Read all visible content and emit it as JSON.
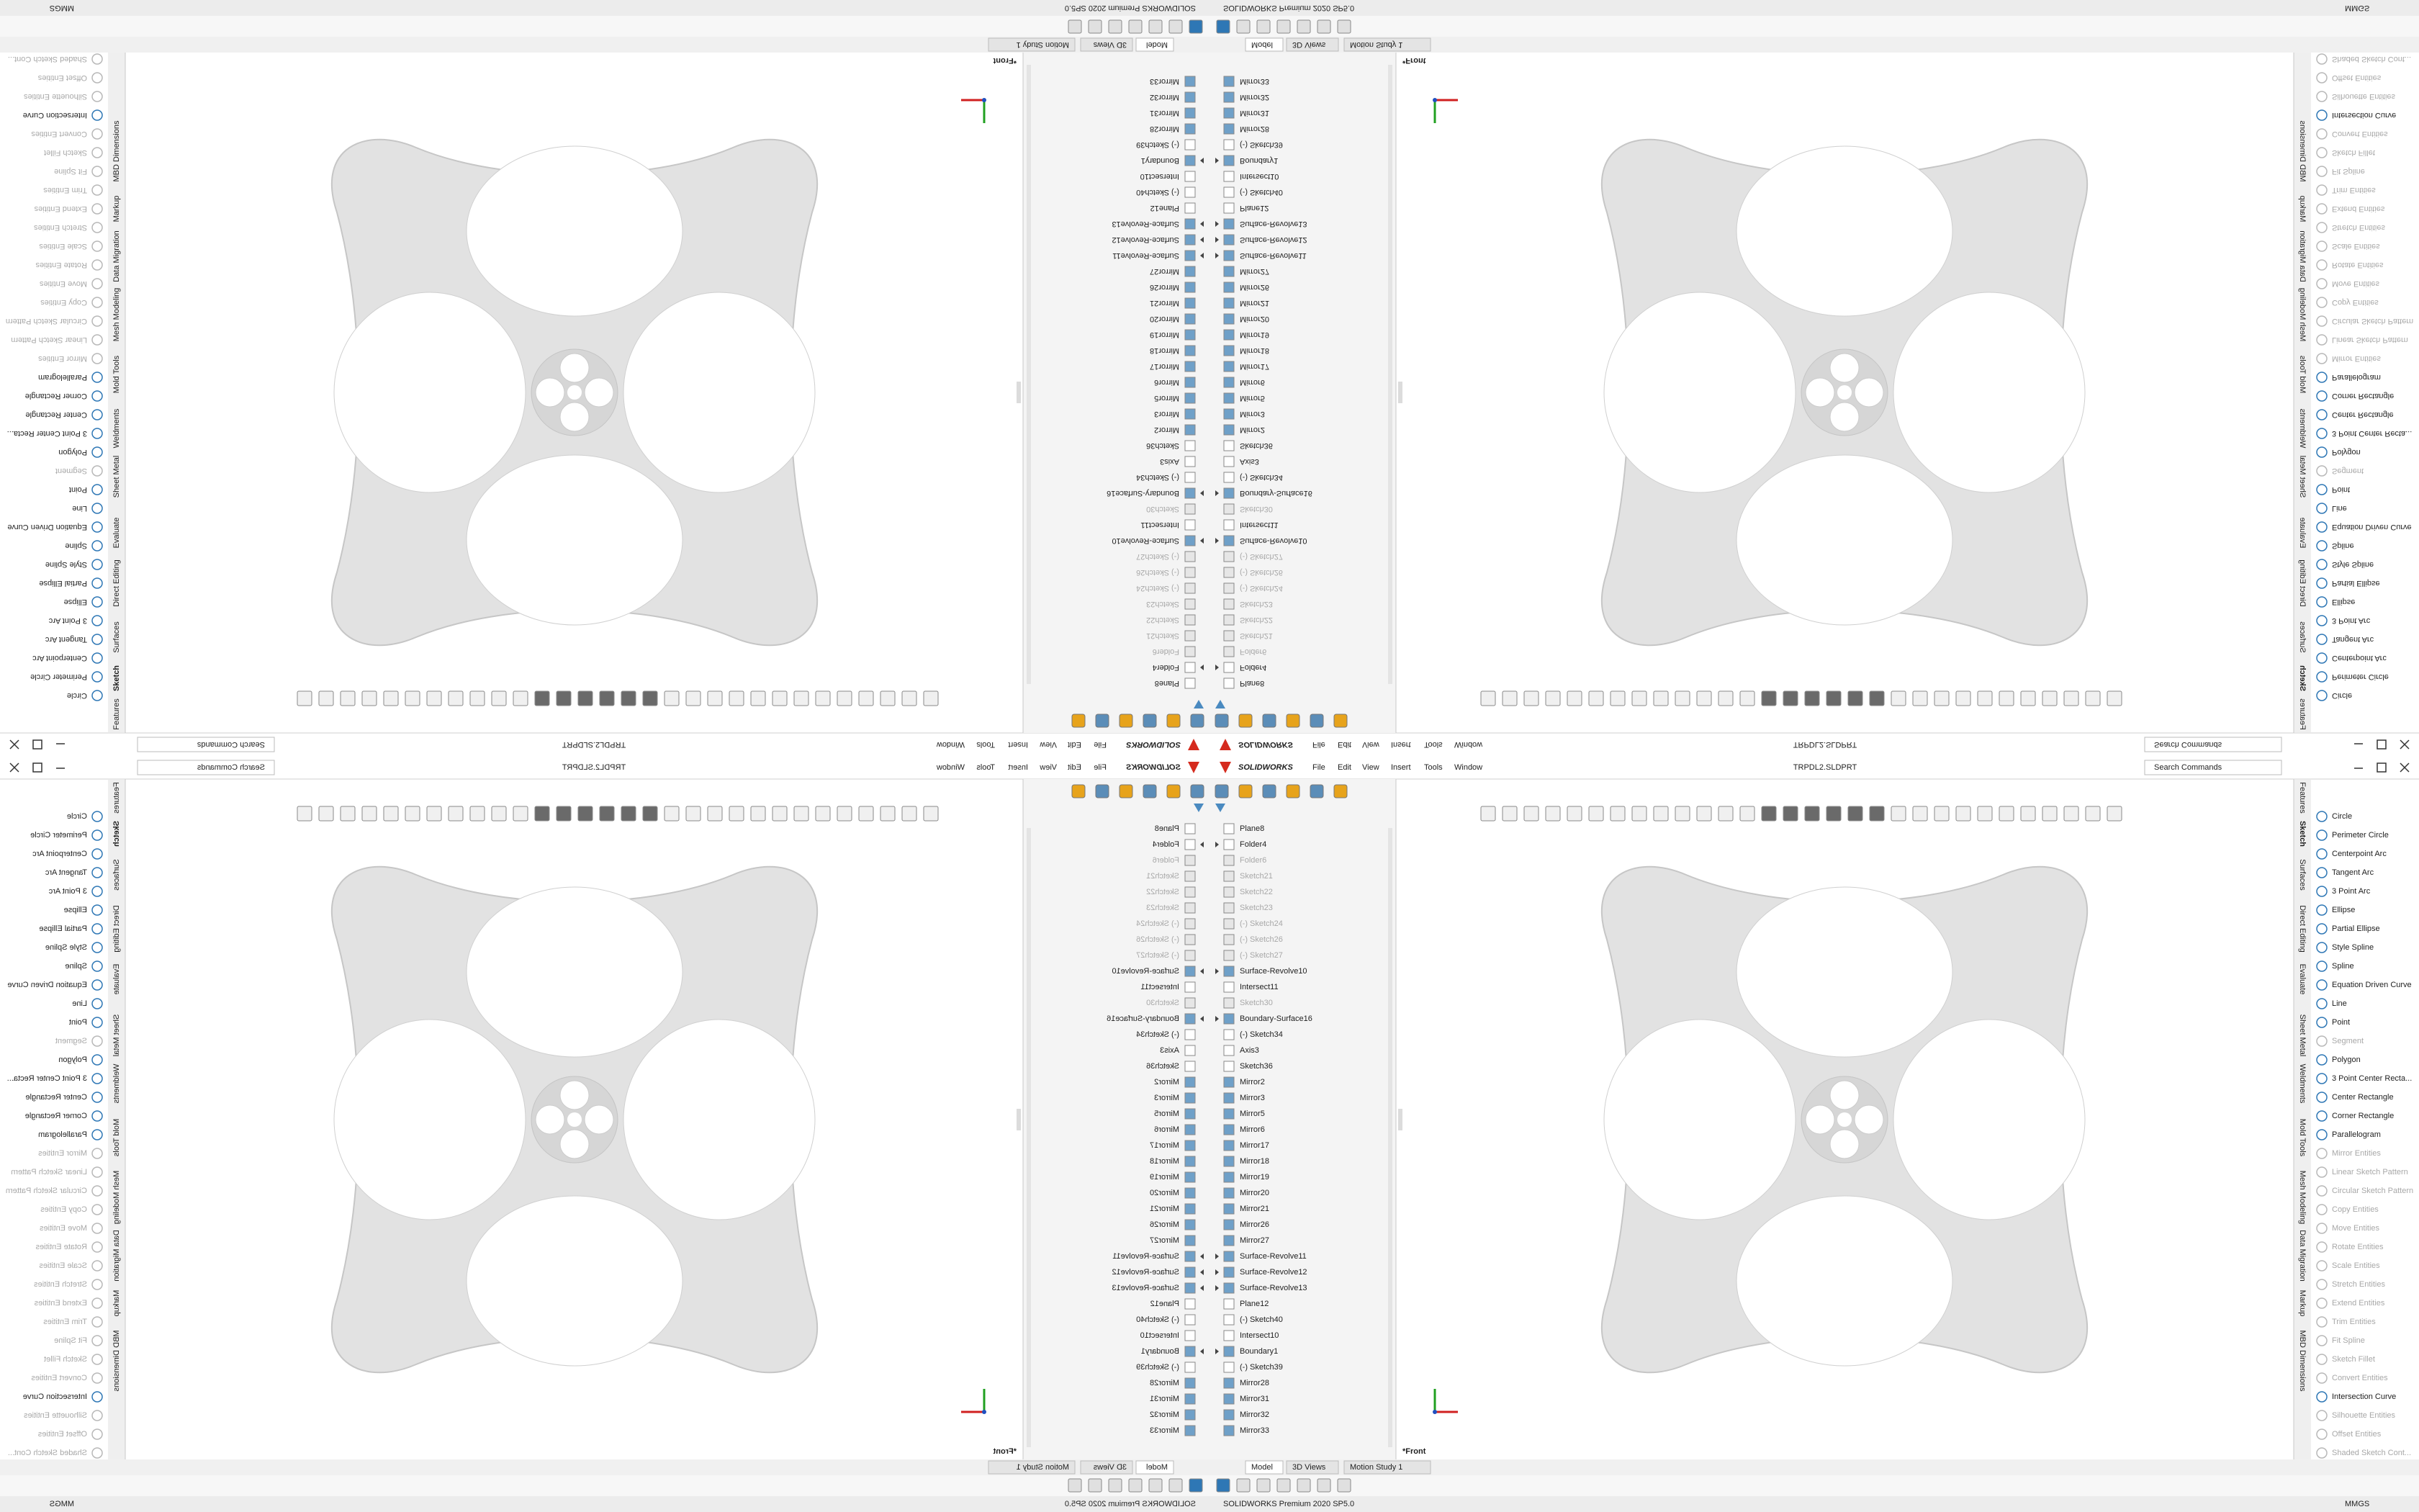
{
  "title_bar": {
    "logo": "SOLIDWORKS",
    "menus": [
      "File",
      "Edit",
      "View",
      "Insert",
      "Tools",
      "Window"
    ],
    "file_name": "TRPDL2.SLDPRT",
    "search_placeholder": "Search Commands"
  },
  "feature_tree": {
    "items": [
      {
        "label": "Plane8"
      },
      {
        "label": "Folder4",
        "expandable": true
      },
      {
        "label": "Folder6",
        "suppressed": true
      },
      {
        "label": "Sketch21",
        "suppressed": true
      },
      {
        "label": "Sketch22",
        "suppressed": true
      },
      {
        "label": "Sketch23",
        "suppressed": true
      },
      {
        "label": "(-) Sketch24",
        "suppressed": true
      },
      {
        "label": "(-) Sketch26",
        "suppressed": true
      },
      {
        "label": "(-) Sketch27",
        "suppressed": true
      },
      {
        "label": "Surface-Revolve10",
        "expandable": true
      },
      {
        "label": "Intersect11"
      },
      {
        "label": "Sketch30",
        "suppressed": true
      },
      {
        "label": "Boundary-Surface16",
        "expandable": true
      },
      {
        "label": "(-) Sketch34"
      },
      {
        "label": "Axis3"
      },
      {
        "label": "Sketch36"
      },
      {
        "label": "Mirror2"
      },
      {
        "label": "Mirror3"
      },
      {
        "label": "Mirror5"
      },
      {
        "label": "Mirror6"
      },
      {
        "label": "Mirror17"
      },
      {
        "label": "Mirror18"
      },
      {
        "label": "Mirror19"
      },
      {
        "label": "Mirror20"
      },
      {
        "label": "Mirror21"
      },
      {
        "label": "Mirror26"
      },
      {
        "label": "Mirror27"
      },
      {
        "label": "Surface-Revolve11",
        "expandable": true
      },
      {
        "label": "Surface-Revolve12",
        "expandable": true
      },
      {
        "label": "Surface-Revolve13",
        "expandable": true
      },
      {
        "label": "Plane12"
      },
      {
        "label": "(-) Sketch40"
      },
      {
        "label": "Intersect10"
      },
      {
        "label": "Boundary1",
        "expandable": true
      },
      {
        "label": "(-) Sketch39"
      },
      {
        "label": "Mirror28"
      },
      {
        "label": "Mirror31"
      },
      {
        "label": "Mirror32"
      },
      {
        "label": "Mirror33"
      }
    ]
  },
  "command_manager": {
    "tabs": [
      "Features",
      "Sketch",
      "Surfaces",
      "Direct Editing",
      "Evaluate",
      "Sheet Metal",
      "Weldments",
      "Mold Tools",
      "Mesh Modeling",
      "Data Migration",
      "Markup",
      "MBD Dimensions"
    ],
    "active_tab": "Sketch",
    "commands": [
      {
        "label": "Circle"
      },
      {
        "label": "Perimeter Circle"
      },
      {
        "label": "Centerpoint Arc"
      },
      {
        "label": "Tangent Arc"
      },
      {
        "label": "3 Point Arc"
      },
      {
        "label": "Ellipse"
      },
      {
        "label": "Partial Ellipse"
      },
      {
        "label": "Style Spline"
      },
      {
        "label": "Spline"
      },
      {
        "label": "Equation Driven Curve"
      },
      {
        "label": "Line"
      },
      {
        "label": "Point"
      },
      {
        "label": "Segment",
        "disabled": true
      },
      {
        "label": "Polygon"
      },
      {
        "label": "3 Point Center Recta..."
      },
      {
        "label": "Center Rectangle"
      },
      {
        "label": "Corner Rectangle"
      },
      {
        "label": "Parallelogram"
      },
      {
        "label": "Mirror Entities",
        "disabled": true
      },
      {
        "label": "Linear Sketch Pattern",
        "disabled": true
      },
      {
        "label": "Circular Sketch Pattern",
        "disabled": true
      },
      {
        "label": "Copy Entities",
        "disabled": true
      },
      {
        "label": "Move Entities",
        "disabled": true
      },
      {
        "label": "Rotate Entities",
        "disabled": true
      },
      {
        "label": "Scale Entities",
        "disabled": true
      },
      {
        "label": "Stretch Entities",
        "disabled": true
      },
      {
        "label": "Extend Entities",
        "disabled": true
      },
      {
        "label": "Trim Entities",
        "disabled": true
      },
      {
        "label": "Fit Spline",
        "disabled": true
      },
      {
        "label": "Sketch Fillet",
        "disabled": true
      },
      {
        "label": "Convert Entities",
        "disabled": true
      },
      {
        "label": "Intersection Curve"
      },
      {
        "label": "Silhouette Entities",
        "disabled": true
      },
      {
        "label": "Offset Entities",
        "disabled": true
      },
      {
        "label": "Shaded Sketch Cont...",
        "disabled": true
      }
    ]
  },
  "viewport": {
    "view_label": "*Front"
  },
  "bottom_tabs": [
    "Model",
    "3D Views",
    "Motion Study 1"
  ],
  "status_bar": {
    "product": "SOLIDWORKS Premium 2020 SP5.0",
    "units": "MMGS"
  }
}
